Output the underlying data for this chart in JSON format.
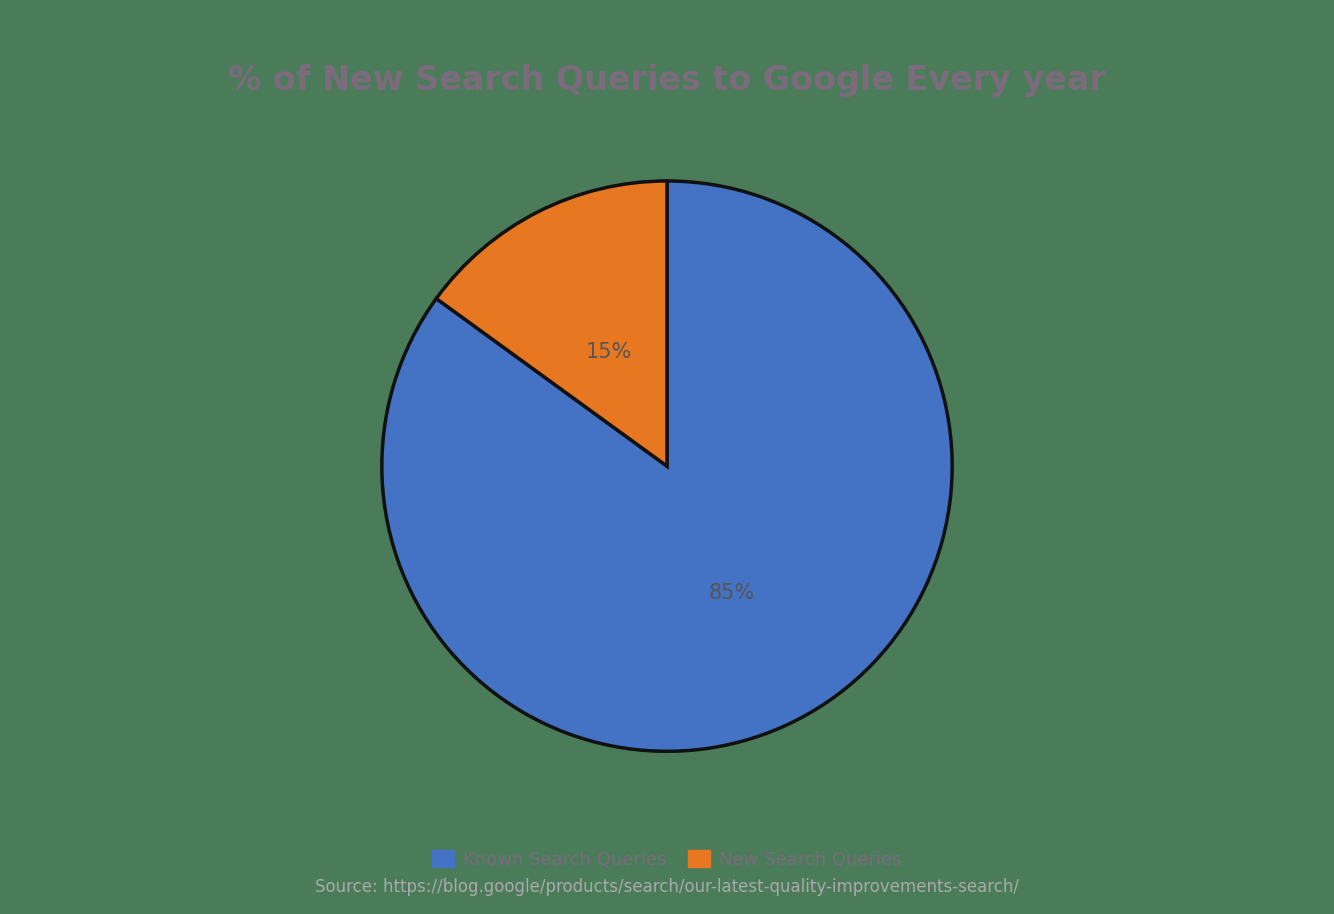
{
  "title": "% of New Search Queries to Google Every year",
  "title_color": "#7B6B7D",
  "title_fontsize": 24,
  "background_color": "#4A7C59",
  "slices": [
    85,
    15
  ],
  "autopct_labels": [
    "85%",
    "15%"
  ],
  "colors": [
    "#4472C4",
    "#E87722"
  ],
  "wedge_edge_color": "#111111",
  "wedge_edge_width": 2.5,
  "legend_labels": [
    "Known Search Queries",
    "New Search Queries"
  ],
  "legend_colors": [
    "#4472C4",
    "#E87722"
  ],
  "source_text": "Source: https://blog.google/products/search/our-latest-quality-improvements-search/",
  "source_color": "#AAAAAA",
  "source_fontsize": 12,
  "legend_fontsize": 13,
  "autopct_fontsize": 15,
  "autopct_color": "#555555",
  "legend_text_color": "#7B6B7D"
}
